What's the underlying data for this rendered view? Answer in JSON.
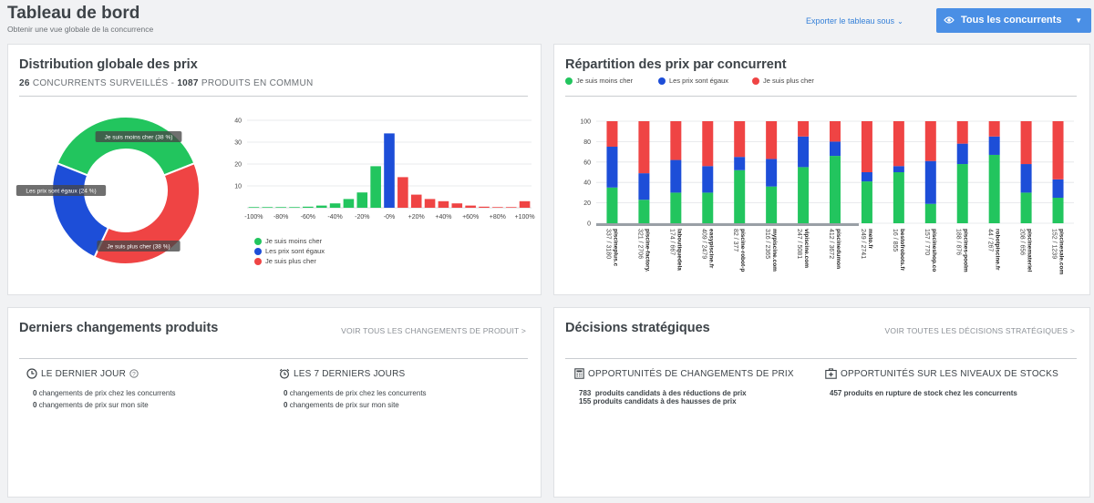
{
  "header": {
    "title": "Tableau de bord",
    "subtitle": "Obtenir une vue globale de la concurrence",
    "export_label": "Exporter le tableau sous",
    "competitors_label": "Tous les concurrents"
  },
  "distribution": {
    "title": "Distribution globale des prix",
    "competitors_count": "26",
    "competitors_label": "CONCURRENTS SURVEILLÉS -",
    "products_count": "1087",
    "products_label": "PRODUITS EN COMMUN",
    "legend": [
      {
        "label": "Je suis moins cher",
        "color": "#22c55e"
      },
      {
        "label": "Les prix sont égaux",
        "color": "#1d4ed8"
      },
      {
        "label": "Je suis plus cher",
        "color": "#ef4444"
      }
    ]
  },
  "colors": {
    "green": "#22c55e",
    "blue": "#1d4ed8",
    "red": "#ef4444"
  },
  "chart_data": [
    {
      "type": "pie",
      "donut": true,
      "labels": [
        "Je suis moins cher (38 %)",
        "Les prix sont égaux (24 %)",
        "Je suis plus cher (38 %)"
      ],
      "values": [
        38,
        24,
        38
      ],
      "colors": [
        "#22c55e",
        "#1d4ed8",
        "#ef4444"
      ]
    },
    {
      "type": "bar",
      "categories": [
        "-100%",
        "-90%",
        "-80%",
        "-70%",
        "-60%",
        "-50%",
        "-40%",
        "-30%",
        "-20%",
        "-10%",
        "-0%",
        "+10%",
        "+20%",
        "+30%",
        "+40%",
        "+50%",
        "+60%",
        "+70%",
        "+80%",
        "+90%",
        "+100%"
      ],
      "tick_labels": [
        "-100%",
        "-80%",
        "-60%",
        "-40%",
        "-20%",
        "-0%",
        "+20%",
        "+40%",
        "+60%",
        "+80%",
        "+100%"
      ],
      "values": [
        0.3,
        0.3,
        0.3,
        0.3,
        0.5,
        1,
        2,
        4,
        7,
        19,
        34,
        14,
        6,
        4,
        3,
        2,
        1,
        0.5,
        0.3,
        0.3,
        3
      ],
      "bar_series": [
        "green",
        "green",
        "green",
        "green",
        "green",
        "green",
        "green",
        "green",
        "green",
        "green",
        "blue",
        "red",
        "red",
        "red",
        "red",
        "red",
        "red",
        "red",
        "red",
        "red",
        "red"
      ],
      "ylim": [
        0,
        40
      ],
      "yticks": [
        10,
        20,
        30,
        40
      ],
      "grid": true
    },
    {
      "type": "bar",
      "stacked": true,
      "title": "Répartition des prix par concurrent",
      "legend": [
        "Je suis moins cher",
        "Les prix sont égaux",
        "Je suis plus cher"
      ],
      "legend_position": "top",
      "categories": [
        {
          "name": "piscineplus.c",
          "count": "337 / 3180"
        },
        {
          "name": "piscine-factory.",
          "count": "321 / 2706"
        },
        {
          "name": "laboutiquedela",
          "count": "174 / 667"
        },
        {
          "name": "easypiscine.fr",
          "count": "409 / 2479"
        },
        {
          "name": "piscine-robot-p",
          "count": "82 / 377"
        },
        {
          "name": "mypiscine.com",
          "count": "316 / 2365"
        },
        {
          "name": "vipiscine.com",
          "count": "247 / 5081"
        },
        {
          "name": "piscinedumon",
          "count": "412 / 3672"
        },
        {
          "name": "meto.fr",
          "count": "249 / 2741"
        },
        {
          "name": "bestofrobots.fr",
          "count": "16 / 855"
        },
        {
          "name": "piscineshop.co",
          "count": "157 / 770"
        },
        {
          "name": "piscines-poolm",
          "count": "188 / 876"
        },
        {
          "name": "robotpiscine.fr",
          "count": "44 / 267"
        },
        {
          "name": "piscinemateriel",
          "count": "208 / 656"
        },
        {
          "name": "piscinesale.com",
          "count": "152 / 1239"
        }
      ],
      "series": [
        {
          "name": "Je suis moins cher",
          "values": [
            35,
            23,
            30,
            30,
            52,
            36,
            55,
            66,
            41,
            50,
            19,
            58,
            67,
            30,
            25
          ]
        },
        {
          "name": "Les prix sont égaux",
          "values": [
            40,
            26,
            32,
            26,
            13,
            27,
            30,
            14,
            9,
            6,
            42,
            20,
            18,
            28,
            18
          ]
        },
        {
          "name": "Je suis plus cher",
          "values": [
            25,
            51,
            38,
            44,
            35,
            37,
            15,
            20,
            50,
            44,
            39,
            22,
            15,
            42,
            57
          ]
        }
      ],
      "ylim": [
        0,
        100
      ],
      "yticks": [
        0,
        20,
        40,
        60,
        80,
        100
      ],
      "grid": true
    }
  ],
  "repartition": {
    "title": "Répartition des prix par concurrent",
    "legend": [
      "Je suis moins cher",
      "Les prix sont égaux",
      "Je suis plus cher"
    ]
  },
  "changes": {
    "title": "Derniers changements produits",
    "link": "VOIR TOUS LES CHANGEMENTS DE PRODUIT >",
    "day": {
      "head": "LE DERNIER JOUR",
      "lines": [
        {
          "count": "0",
          "text": "changements de prix chez les concurrents"
        },
        {
          "count": "0",
          "text": "changements de prix sur mon site"
        }
      ]
    },
    "week": {
      "head": "LES 7 DERNIERS JOURS",
      "lines": [
        {
          "count": "0",
          "text": "changements de prix chez les concurrents"
        },
        {
          "count": "0",
          "text": "changements de prix sur mon site"
        }
      ]
    }
  },
  "decisions": {
    "title": "Décisions stratégiques",
    "link": "VOIR TOUTES LES DÉCISIONS STRATÉGIQUES >",
    "prices": {
      "head": "OPPORTUNITÉS DE CHANGEMENTS DE PRIX",
      "lines": [
        {
          "count": "783",
          "text": "produits candidats à des réductions de prix"
        },
        {
          "count": "155",
          "text": "produits candidats à des hausses de prix"
        }
      ]
    },
    "stocks": {
      "head": "OPPORTUNITÉS SUR LES NIVEAUX DE STOCKS",
      "lines": [
        {
          "count": "457",
          "text": "produits en rupture de stock chez les concurrents"
        }
      ]
    }
  }
}
